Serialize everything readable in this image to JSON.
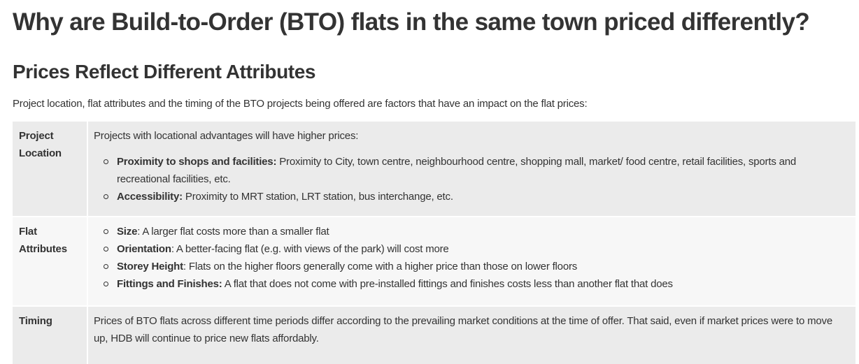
{
  "page": {
    "title": "Why are Build-to-Order (BTO) flats in the same town priced differently?",
    "section_heading": "Prices Reflect Different Attributes",
    "intro": "Project location, flat attributes and the timing of the BTO projects being offered are factors that have an impact on the flat prices:"
  },
  "table": {
    "project_location": {
      "label_line1": "Project",
      "label_line2": "Location",
      "lead": "Projects with locational advantages will have higher prices:",
      "items": [
        {
          "term": "Proximity to shops and facilities:",
          "text": " Proximity to City, town centre, neighbourhood centre, shopping mall, market/ food centre, retail facilities, sports and recreational facilities, etc."
        },
        {
          "term": "Accessibility:",
          "text": " Proximity to MRT station, LRT station, bus interchange, etc."
        }
      ]
    },
    "flat_attributes": {
      "label_line1": "Flat",
      "label_line2": "Attributes",
      "items": [
        {
          "term": "Size",
          "text": ": A larger flat costs more than a smaller flat"
        },
        {
          "term": "Orientation",
          "text": ": A better-facing flat (e.g. with views of the park) will cost more"
        },
        {
          "term": "Storey Height",
          "text": ": Flats on the higher floors generally come with a higher price than those on lower floors"
        },
        {
          "term": "Fittings and Finishes:",
          "text": " A flat that does not come with pre-installed fittings and finishes costs less than another flat that does"
        }
      ]
    },
    "timing": {
      "label": "Timing",
      "text": "Prices of BTO flats across different time periods differ according to the prevailing market conditions at the time of offer. That said, even if market prices were to move up, HDB will continue to price new flats affordably."
    }
  }
}
